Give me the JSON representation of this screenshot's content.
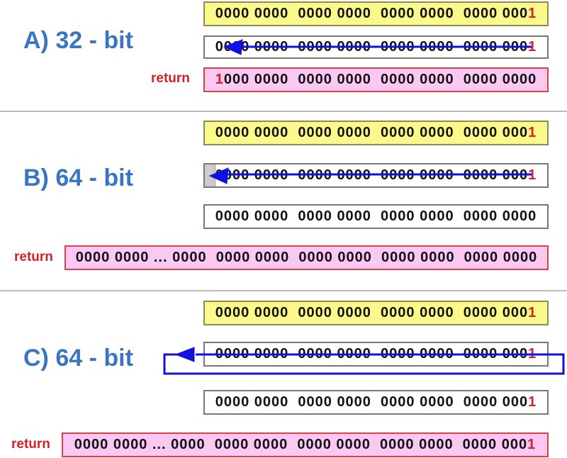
{
  "colors": {
    "label": "#3a75c4",
    "highlight": "#d8202a",
    "arrow": "#1010e0",
    "input_fill": "#fbf98a",
    "return_fill": "#fbc8f4"
  },
  "sections": [
    {
      "label": "A) 32 - bit",
      "return_label": "return",
      "rows": [
        {
          "lead": "",
          "body": "0000 0000  0000 0000  0000 0000  0000 000",
          "tail": "1"
        },
        {
          "lead": "",
          "body": "0000 0000  0000 0000  0000 0000  0000 000",
          "tail": "1"
        },
        {
          "lead": "1",
          "body": "000 0000  0000 0000  0000 0000  0000 0000",
          "tail": ""
        }
      ]
    },
    {
      "label": "B) 64 - bit",
      "return_label": "return",
      "rows": [
        {
          "lead": "",
          "body": "0000 0000  0000 0000  0000 0000  0000 000",
          "tail": "1"
        },
        {
          "lead": "",
          "body": "0000 0000  0000 0000  0000 0000  0000 000",
          "tail": "1"
        },
        {
          "lead": "",
          "body": "0000 0000  0000 0000  0000 0000  0000 0000",
          "tail": ""
        },
        {
          "lead": "",
          "body": "0000 0000 ... 0000  0000 0000  0000 0000  0000 0000  0000 0000",
          "tail": ""
        }
      ]
    },
    {
      "label": "C) 64 - bit",
      "return_label": "return",
      "rows": [
        {
          "lead": "",
          "body": "0000 0000  0000 0000  0000 0000  0000 000",
          "tail": "1"
        },
        {
          "lead": "",
          "body": "0000 0000  0000 0000  0000 0000  0000 000",
          "tail": "1"
        },
        {
          "lead": "",
          "body": "0000 0000  0000 0000  0000 0000  0000 000",
          "tail": "1"
        },
        {
          "lead": "",
          "body": "0000 0000 ... 0000  0000 0000  0000 0000  0000 0000  0000 000",
          "tail": "1"
        }
      ]
    }
  ]
}
